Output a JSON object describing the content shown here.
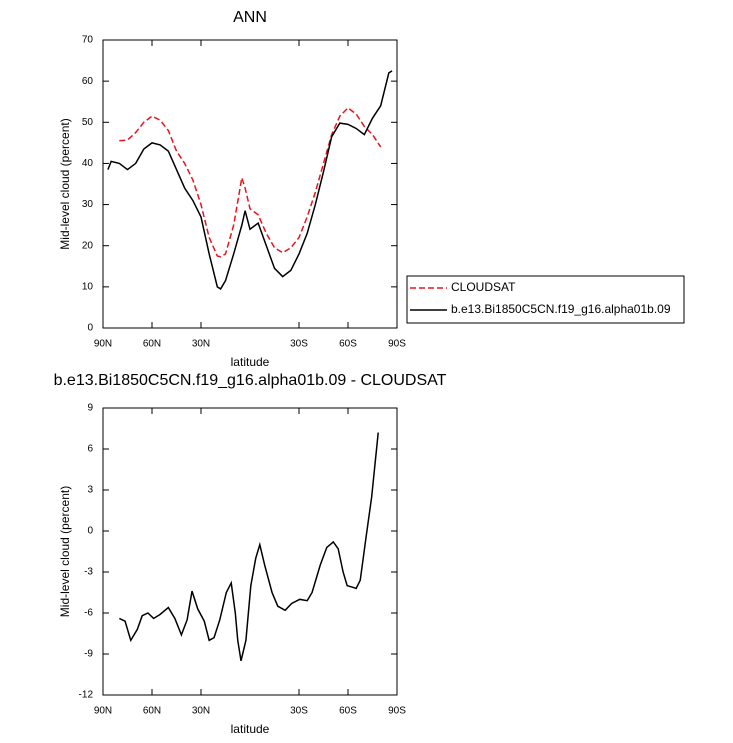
{
  "chart_data": [
    {
      "type": "line",
      "title": "ANN",
      "x_label": "latitude",
      "y_label": "Mid-level cloud (percent)",
      "x": [
        87,
        85,
        80,
        75,
        70,
        65,
        60,
        55,
        50,
        45,
        40,
        35,
        30,
        25,
        20,
        18,
        15,
        10,
        5,
        3,
        0,
        -5,
        -10,
        -15,
        -20,
        -25,
        -30,
        -35,
        -40,
        -45,
        -50,
        -55,
        -60,
        -65,
        -70,
        -75,
        -80,
        -85,
        -87
      ],
      "series": [
        {
          "name": "CLOUDSAT",
          "color": "#e8141b",
          "linestyle": "dashed",
          "values": [
            null,
            null,
            45.5,
            45.7,
            47.5,
            50,
            51.5,
            50.5,
            48,
            43,
            40,
            36,
            30,
            22,
            17.5,
            17.3,
            18,
            25,
            36.5,
            34,
            29,
            27.5,
            23,
            19.5,
            18.3,
            19.5,
            22,
            27,
            33,
            40,
            47,
            51.5,
            53.5,
            52,
            49,
            47,
            44,
            null,
            null
          ]
        },
        {
          "name": "b.e13.Bi1850C5CN.f19_g16.alpha01b.09",
          "color": "#000000",
          "linestyle": "solid",
          "values": [
            38.5,
            40.5,
            40,
            38.5,
            40,
            43.5,
            45,
            44.5,
            43,
            38.5,
            34,
            31,
            27,
            18,
            10,
            9.5,
            11.5,
            18,
            25,
            28.5,
            24,
            25.5,
            20,
            14.5,
            12.5,
            14,
            18,
            23,
            30,
            38,
            46.5,
            49.8,
            49.5,
            48.5,
            47,
            51,
            54,
            62,
            62.5
          ]
        }
      ],
      "xlim": [
        90,
        -90
      ],
      "xticks": [
        {
          "value": 90,
          "label": "90N"
        },
        {
          "value": 60,
          "label": "60N"
        },
        {
          "value": 30,
          "label": "30N"
        },
        {
          "value": -30,
          "label": "30S"
        },
        {
          "value": -60,
          "label": "60S"
        },
        {
          "value": -90,
          "label": "90S"
        }
      ],
      "ylim": [
        0,
        70
      ],
      "yticks": [
        0,
        10,
        20,
        30,
        40,
        50,
        60,
        70
      ],
      "legend": "outside-right"
    },
    {
      "type": "line",
      "title": "b.e13.Bi1850C5CN.f19_g16.alpha01b.09 - CLOUDSAT",
      "x_label": "latitude",
      "y_label": "Mid-level cloud (percent)",
      "x": [
        80,
        76.5,
        73,
        69,
        66,
        62.5,
        59,
        55,
        50,
        46,
        42,
        38.5,
        35.5,
        32,
        28,
        25,
        22,
        18.5,
        14.5,
        11.5,
        9,
        7.5,
        5.5,
        2.5,
        -0.5,
        -3.5,
        -6,
        -9,
        -13.5,
        -17,
        -21.5,
        -25.5,
        -30.5,
        -35,
        -38,
        -43,
        -47,
        -51,
        -54,
        -57,
        -59.5,
        -62.5,
        -65,
        -67.5,
        -71,
        -74.5,
        -78.5
      ],
      "series": [
        {
          "name": null,
          "color": "#000000",
          "linestyle": "solid",
          "values": [
            -6.4,
            -6.6,
            -8,
            -7.2,
            -6.2,
            -6,
            -6.4,
            -6.1,
            -5.6,
            -6.4,
            -7.6,
            -6.5,
            -4.4,
            -5.7,
            -6.6,
            -8,
            -7.8,
            -6.5,
            -4.5,
            -3.8,
            -6,
            -8,
            -9.5,
            -8,
            -4,
            -2,
            -1,
            -2.5,
            -4.5,
            -5.5,
            -5.8,
            -5.3,
            -5,
            -5.1,
            -4.5,
            -2.5,
            -1.2,
            -0.8,
            -1.3,
            -3,
            -4,
            -4.1,
            -4.2,
            -3.6,
            -0.5,
            2.5,
            7.2
          ]
        }
      ],
      "xlim": [
        90,
        -90
      ],
      "xticks": [
        {
          "value": 90,
          "label": "90N"
        },
        {
          "value": 60,
          "label": "60N"
        },
        {
          "value": 30,
          "label": "30N"
        },
        {
          "value": -30,
          "label": "30S"
        },
        {
          "value": -60,
          "label": "60S"
        },
        {
          "value": -90,
          "label": "90S"
        }
      ],
      "ylim": [
        -12,
        9
      ],
      "yticks": [
        -12,
        -9,
        -6,
        -3,
        0,
        3,
        6,
        9
      ]
    }
  ]
}
